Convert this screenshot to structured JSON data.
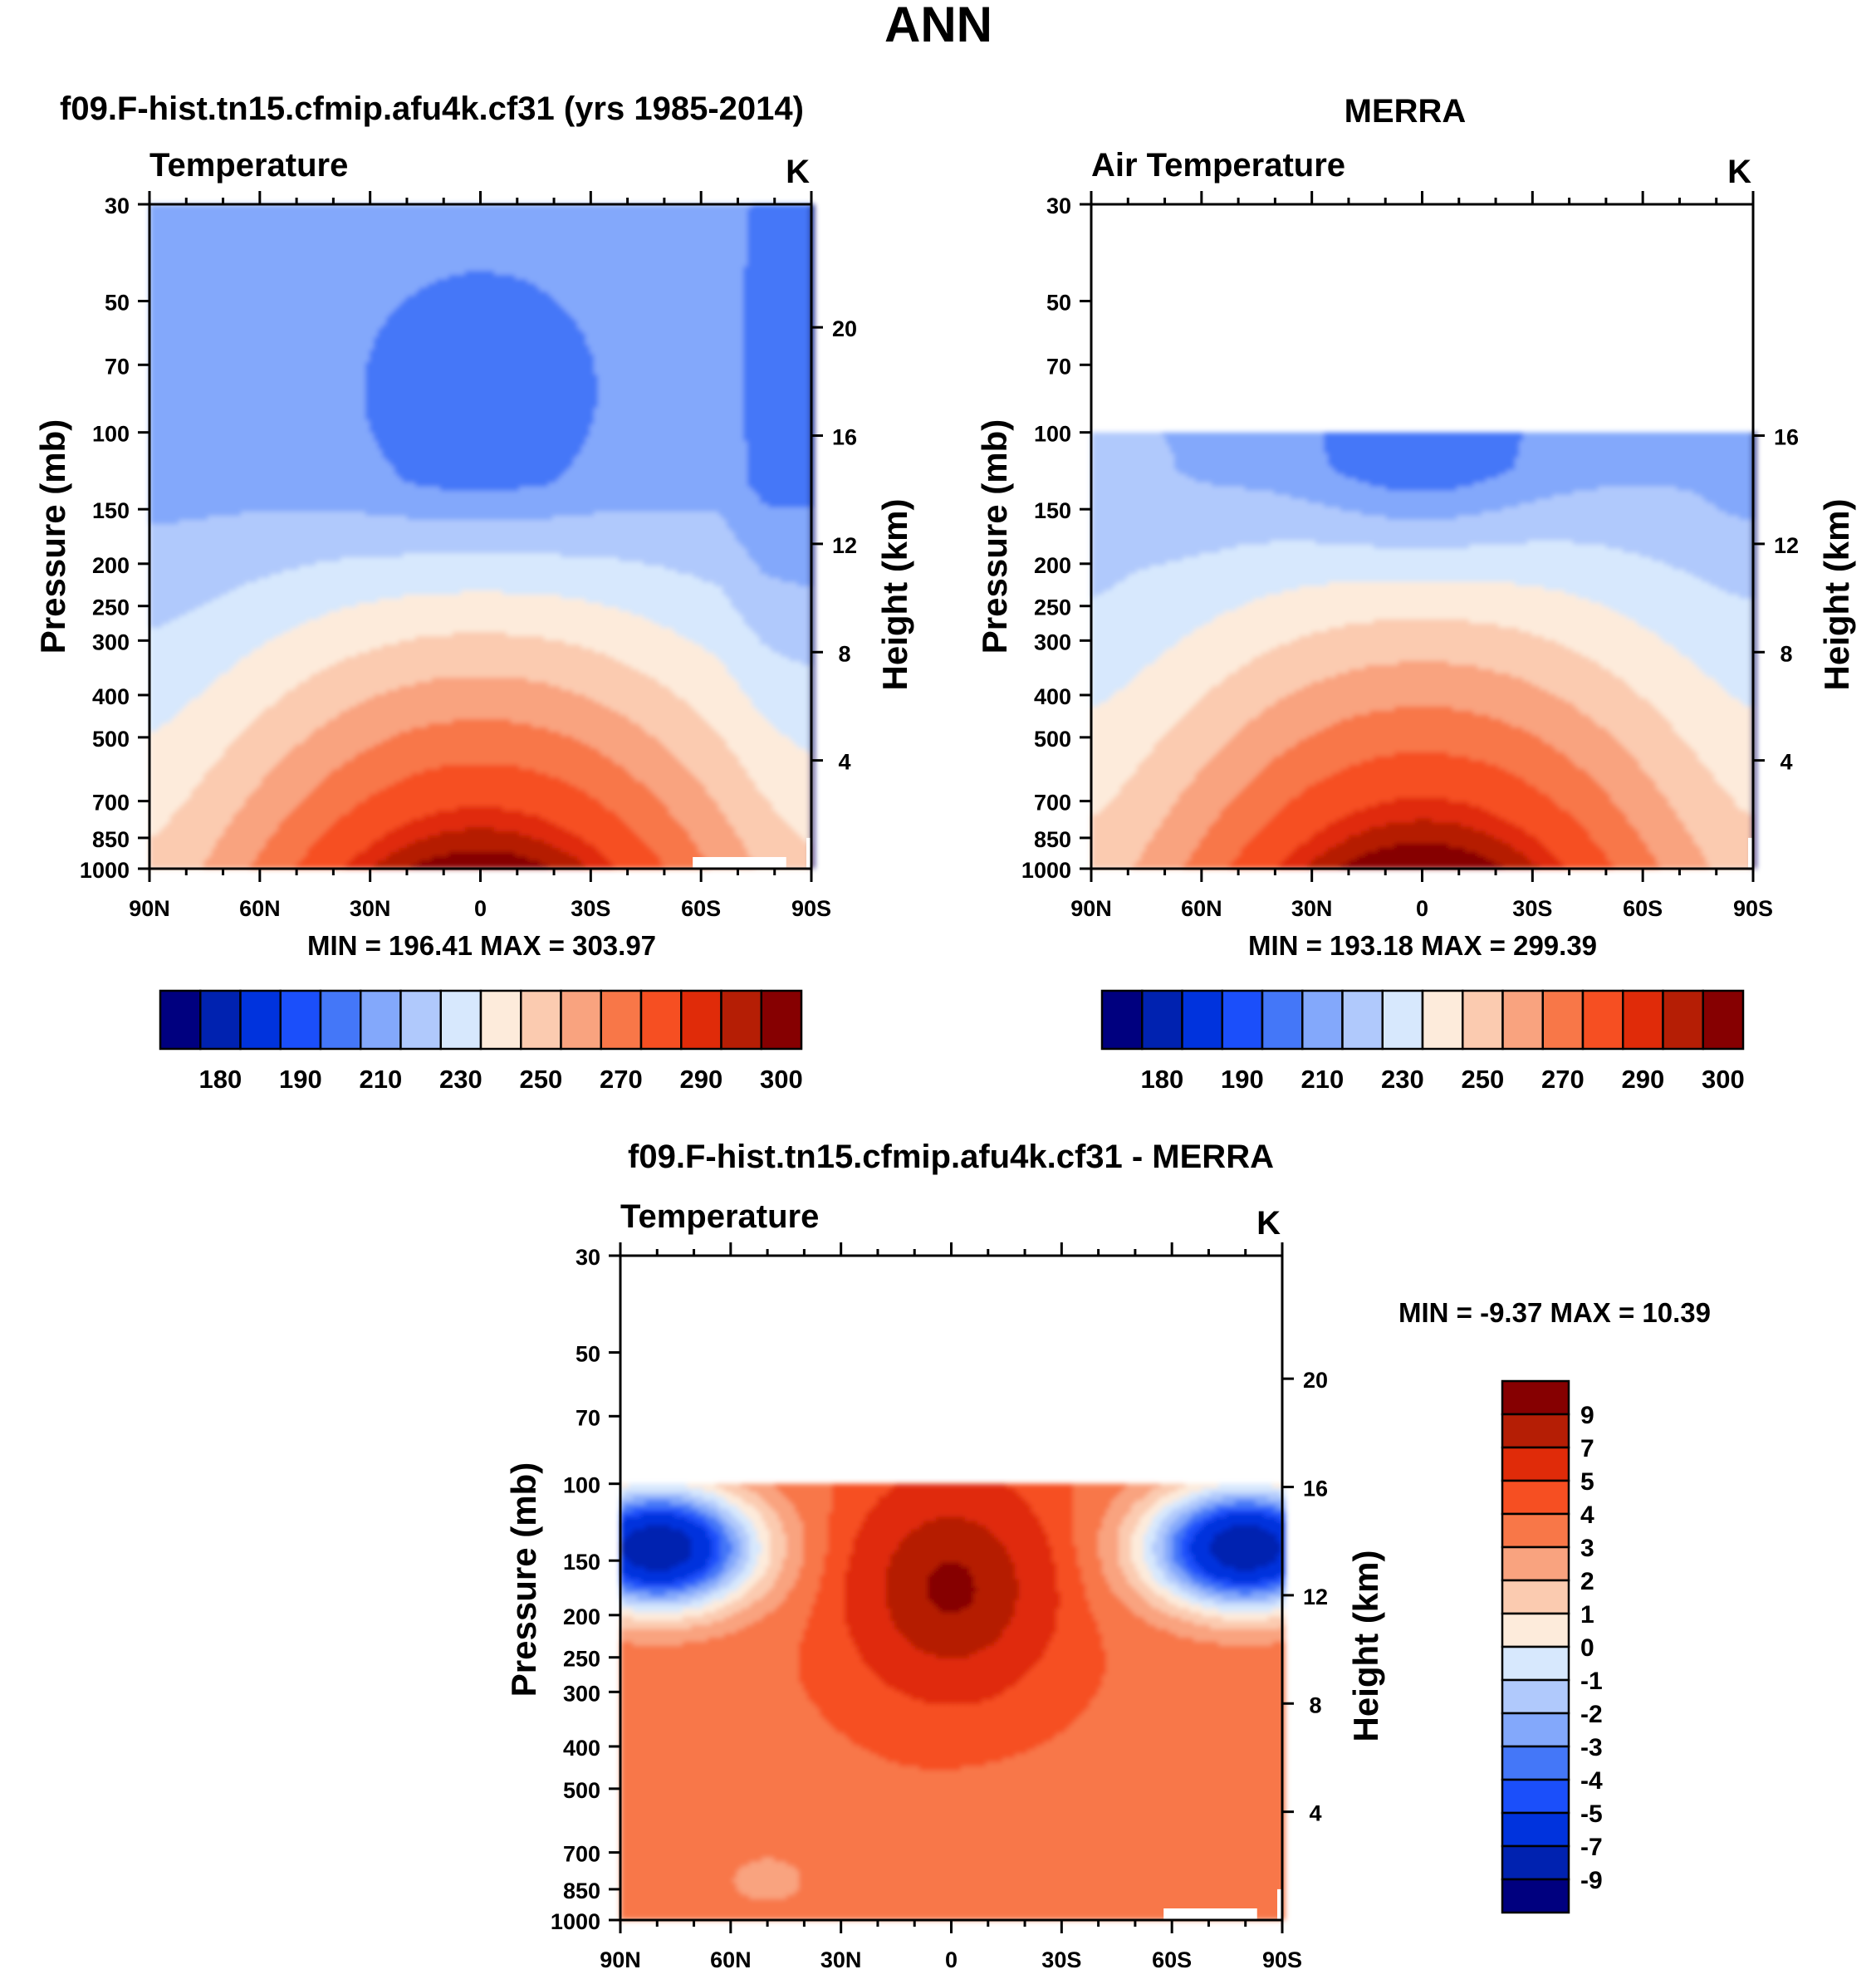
{
  "figure": {
    "title": "ANN"
  },
  "palettes": {
    "abs": [
      "#00007f",
      "#0022b0",
      "#0033dd",
      "#1b4ffa",
      "#4477f8",
      "#83a8fb",
      "#b0c9fc",
      "#d7e8fd",
      "#fdebdb",
      "#fbcbb0",
      "#f9a37f",
      "#f87748",
      "#f64f22",
      "#e02b09",
      "#b51e05",
      "#860001"
    ],
    "diff": [
      "#00007f",
      "#0022b0",
      "#0033dd",
      "#1b4ffa",
      "#4477f8",
      "#83a8fb",
      "#b0c9fc",
      "#d7e8fd",
      "#fdebdb",
      "#fbcbb0",
      "#f9a37f",
      "#f87748",
      "#f64f22",
      "#e02b09",
      "#b51e05",
      "#860001"
    ]
  },
  "chart_data": [
    {
      "type": "contour",
      "id": "model",
      "title": "f09.F-hist.tn15.cfmip.afu4k.cf31 (yrs 1985-2014)",
      "left_string": "Temperature",
      "units": "K",
      "ylabel": "Pressure (mb)",
      "ylabel_right": "Height (km)",
      "x_ticks": [
        "90N",
        "60N",
        "30N",
        "0",
        "30S",
        "60S",
        "90S"
      ],
      "y_ticks": [
        "30",
        "50",
        "70",
        "100",
        "150",
        "200",
        "250",
        "300",
        "400",
        "500",
        "700",
        "850",
        "1000"
      ],
      "y_ticks_right": [
        "20",
        "16",
        "12",
        "8",
        "4"
      ],
      "ylim_mb": [
        30,
        1000
      ],
      "data_top_mb": 30,
      "minmax": "MIN = 196.41  MAX = 303.97",
      "min": 196.41,
      "max": 303.97,
      "colorbar_labels": [
        "180",
        "190",
        "210",
        "230",
        "250",
        "270",
        "290",
        "300"
      ]
    },
    {
      "type": "contour",
      "id": "obs",
      "title": "MERRA",
      "left_string": "Air Temperature",
      "units": "K",
      "ylabel": "Pressure (mb)",
      "ylabel_right": "Height (km)",
      "x_ticks": [
        "90N",
        "60N",
        "30N",
        "0",
        "30S",
        "60S",
        "90S"
      ],
      "y_ticks": [
        "30",
        "50",
        "70",
        "100",
        "150",
        "200",
        "250",
        "300",
        "400",
        "500",
        "700",
        "850",
        "1000"
      ],
      "y_ticks_right": [
        "16",
        "12",
        "8",
        "4"
      ],
      "ylim_mb": [
        30,
        1000
      ],
      "data_top_mb": 100,
      "minmax": "MIN = 193.18  MAX = 299.39",
      "min": 193.18,
      "max": 299.39,
      "colorbar_labels": [
        "180",
        "190",
        "210",
        "230",
        "250",
        "270",
        "290",
        "300"
      ]
    },
    {
      "type": "contour",
      "id": "diff",
      "title": "f09.F-hist.tn15.cfmip.afu4k.cf31 - MERRA",
      "left_string": "Temperature",
      "units": "K",
      "ylabel": "Pressure (mb)",
      "ylabel_right": "Height (km)",
      "x_ticks": [
        "90N",
        "60N",
        "30N",
        "0",
        "30S",
        "60S",
        "90S"
      ],
      "y_ticks": [
        "30",
        "50",
        "70",
        "100",
        "150",
        "200",
        "250",
        "300",
        "400",
        "500",
        "700",
        "850",
        "1000"
      ],
      "y_ticks_right": [
        "20",
        "16",
        "12",
        "8",
        "4"
      ],
      "ylim_mb": [
        30,
        1000
      ],
      "data_top_mb": 100,
      "minmax": "MIN =  -9.37  MAX =  10.39",
      "min": -9.37,
      "max": 10.39,
      "colorbar_labels": [
        "9",
        "7",
        "5",
        "4",
        "3",
        "2",
        "1",
        "0",
        "-1",
        "-2",
        "-3",
        "-4",
        "-5",
        "-7",
        "-9"
      ]
    }
  ]
}
